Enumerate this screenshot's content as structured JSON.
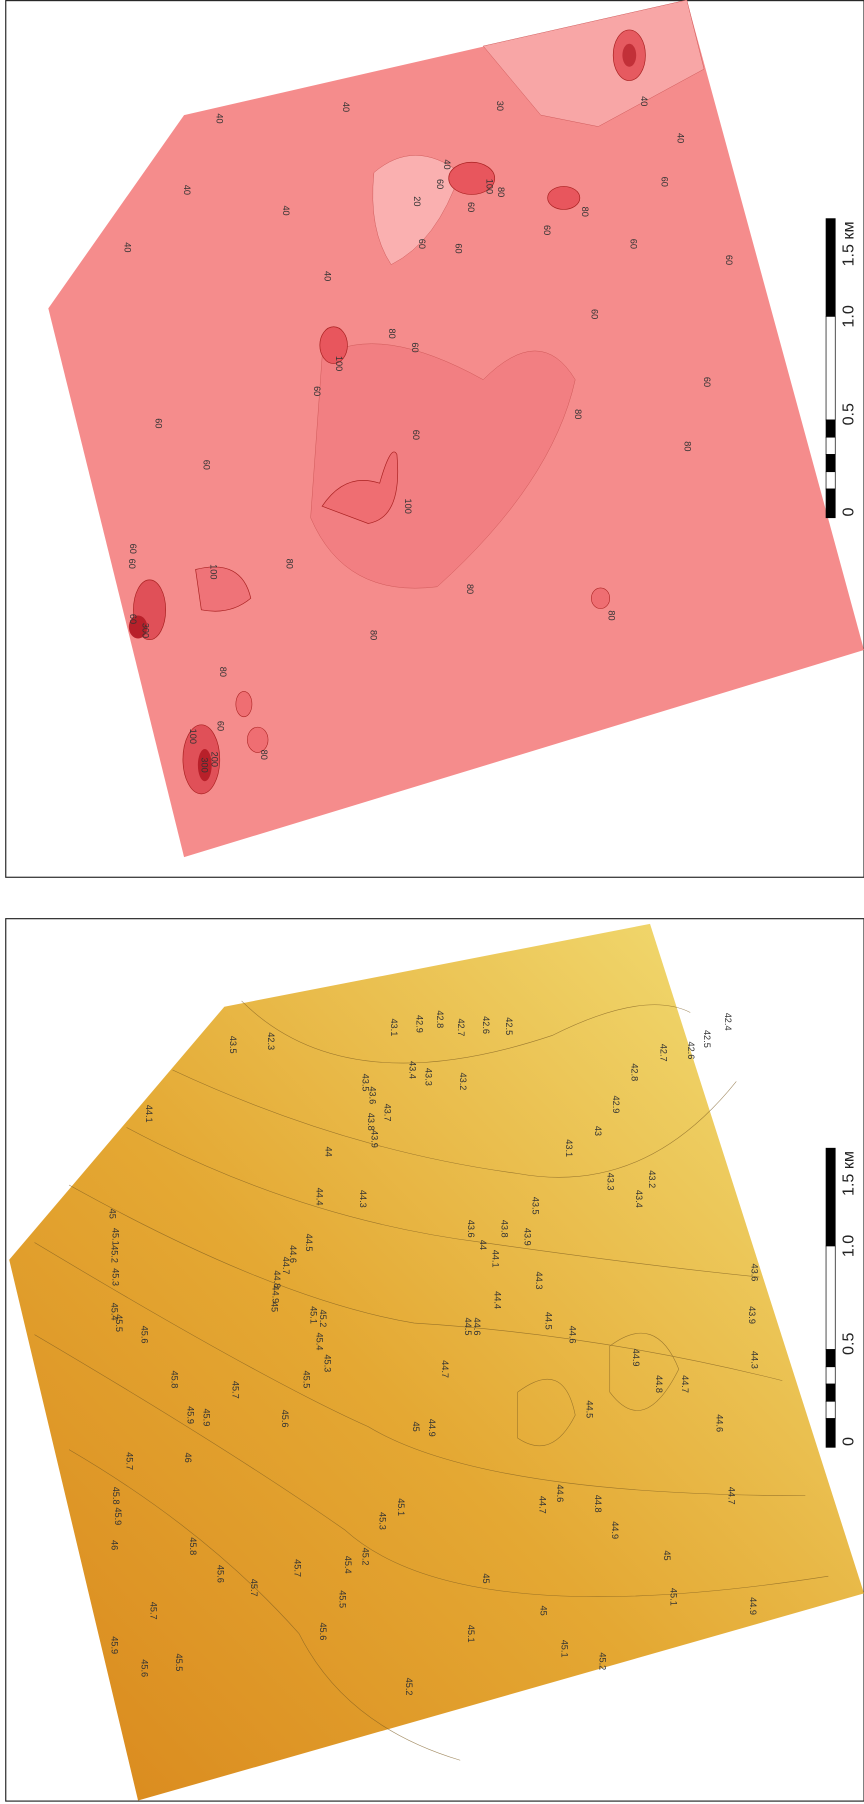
{
  "maps": [
    {
      "scale_labels": [
        "0",
        "0.5",
        "1.0",
        "1.5 км"
      ],
      "contour_labels": [
        "40",
        "40",
        "30",
        "40",
        "40",
        "40",
        "40",
        "40",
        "40",
        "20",
        "40",
        "60",
        "100",
        "80",
        "60",
        "60",
        "60",
        "60",
        "80",
        "60",
        "60",
        "60",
        "60",
        "80",
        "60",
        "100",
        "60",
        "60",
        "60",
        "80",
        "80",
        "60",
        "60",
        "100",
        "60",
        "60",
        "100",
        "80",
        "80",
        "80",
        "60",
        "300",
        "80",
        "80",
        "60",
        "80",
        "100",
        "200",
        "300"
      ]
    },
    {
      "scale_labels": [
        "0",
        "0.5",
        "1.0",
        "1.5 км"
      ],
      "contour_labels": [
        "42.3",
        "43.5",
        "43.1",
        "42.9",
        "42.8",
        "42.7",
        "42.6",
        "42.5",
        "42.4",
        "42.5",
        "42.6",
        "42.7",
        "42.8",
        "42.9",
        "43",
        "43.1",
        "43.2",
        "43.3",
        "43.4",
        "43.5",
        "43.6",
        "43.8",
        "43.9",
        "44",
        "44.1",
        "44.3",
        "44.4",
        "44.5",
        "44.6",
        "43.6",
        "43.9",
        "44.3",
        "44.7",
        "44.8",
        "44.9",
        "44.5",
        "44.6",
        "44.7",
        "44.6",
        "44.7",
        "44.8",
        "44.9",
        "45",
        "45.1",
        "44.9",
        "45",
        "45.1",
        "45.2",
        "45.1",
        "45.2",
        "45",
        "45.3",
        "45.2",
        "45.1",
        "45",
        "44.9",
        "44.7",
        "44.5",
        "44.6",
        "44.4",
        "44.3",
        "44",
        "43.9",
        "43.8",
        "43.7",
        "43.6",
        "43.5",
        "43.4",
        "43.3",
        "43.2",
        "44.1",
        "45.5",
        "45.6",
        "45.8",
        "45.9",
        "45.7",
        "45.6",
        "45.5",
        "45.3",
        "45.4",
        "45.2",
        "45.1",
        "44.9",
        "45",
        "44.8",
        "44.7",
        "44.6",
        "44.5",
        "45.7",
        "45.8",
        "45.9",
        "46",
        "46",
        "45.9",
        "45",
        "45.1",
        "45.2",
        "45.3",
        "45.4",
        "45.8",
        "45.6",
        "45.7",
        "45.7",
        "45.6",
        "45.5",
        "45.4",
        "45.7",
        "45.9",
        "45.6",
        "45.5"
      ]
    }
  ]
}
